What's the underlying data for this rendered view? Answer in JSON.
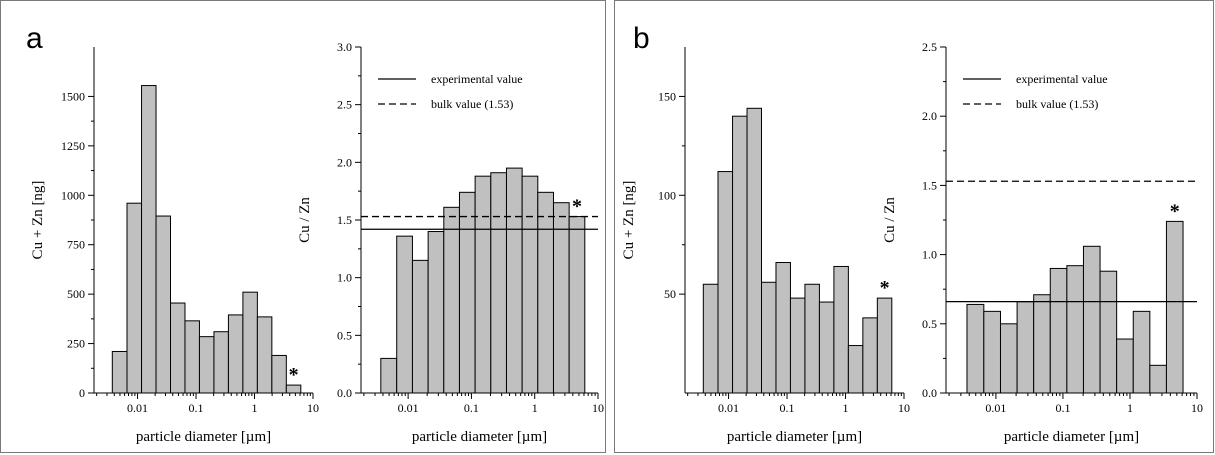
{
  "panels": {
    "a": {
      "label": "a"
    },
    "b": {
      "label": "b"
    }
  },
  "colors": {
    "bar_fill": "#c0c0c0",
    "bar_stroke": "#000000",
    "line": "#000000"
  },
  "chart_data": [
    {
      "id": "a-left",
      "type": "bar",
      "xscale": "log",
      "xlabel": "particle diameter [µm]",
      "ylabel": "Cu + Zn [ng]",
      "xticks": [
        0.01,
        0.1,
        1,
        10
      ],
      "xtick_labels": [
        "0.01",
        "0.1",
        "1",
        "10"
      ],
      "yticks": [
        0,
        250,
        500,
        750,
        1000,
        1250,
        1500
      ],
      "ytick_labels": [
        "0",
        "250",
        "500",
        "750",
        "1000",
        "1250",
        "1500"
      ],
      "ylim": [
        0,
        1750
      ],
      "xlim": [
        0.0018,
        10
      ],
      "bin_edges": [
        0.0037,
        0.0066,
        0.0117,
        0.0207,
        0.0366,
        0.0647,
        0.1144,
        0.2024,
        0.3579,
        0.6329,
        1.1192,
        1.9792,
        3.5,
        6.19
      ],
      "values": [
        210,
        960,
        1555,
        895,
        455,
        365,
        285,
        310,
        395,
        510,
        385,
        190,
        40
      ],
      "annotations": [
        {
          "text": "*",
          "bar_index": 12
        }
      ]
    },
    {
      "id": "a-right",
      "type": "bar",
      "xscale": "log",
      "xlabel": "particle diameter [µm]",
      "ylabel": "Cu / Zn",
      "xticks": [
        0.01,
        0.1,
        1,
        10
      ],
      "xtick_labels": [
        "0.01",
        "0.1",
        "1",
        "10"
      ],
      "yticks": [
        0,
        0.5,
        1.0,
        1.5,
        2.0,
        2.5,
        3.0
      ],
      "ytick_labels": [
        "0.0",
        "0.5",
        "1.0",
        "1.5",
        "2.0",
        "2.5",
        "3.0"
      ],
      "ylim": [
        0,
        3.0
      ],
      "xlim": [
        0.0018,
        10
      ],
      "bin_edges": [
        0.0037,
        0.0066,
        0.0117,
        0.0207,
        0.0366,
        0.0647,
        0.1144,
        0.2024,
        0.3579,
        0.6329,
        1.1192,
        1.9792,
        3.5,
        6.19
      ],
      "values": [
        0.3,
        1.36,
        1.15,
        1.4,
        1.61,
        1.74,
        1.88,
        1.91,
        1.95,
        1.88,
        1.74,
        1.65,
        1.53
      ],
      "reference_lines": [
        {
          "label": "experimental value",
          "value": 1.42,
          "style": "solid"
        },
        {
          "label": "bulk value (1.53)",
          "value": 1.53,
          "style": "dashed"
        }
      ],
      "legend": [
        "experimental value",
        "bulk value (1.53)"
      ],
      "legend_position": "top-right",
      "annotations": [
        {
          "text": "*",
          "bar_index": 12
        }
      ]
    },
    {
      "id": "b-left",
      "type": "bar",
      "xscale": "log",
      "xlabel": "particle diameter [µm]",
      "ylabel": "Cu + Zn [ng]",
      "xticks": [
        0.01,
        0.1,
        1,
        10
      ],
      "xtick_labels": [
        "0.01",
        "0.1",
        "1",
        "10"
      ],
      "yticks": [
        50,
        100,
        150
      ],
      "ytick_labels": [
        "50",
        "100",
        "150"
      ],
      "ylim": [
        0,
        175
      ],
      "xlim": [
        0.0018,
        10
      ],
      "bin_edges": [
        0.0037,
        0.0066,
        0.0117,
        0.0207,
        0.0366,
        0.0647,
        0.1144,
        0.2024,
        0.3579,
        0.6329,
        1.1192,
        1.9792,
        3.5,
        6.19
      ],
      "values": [
        55,
        112,
        140,
        144,
        56,
        66,
        48,
        55,
        46,
        64,
        24,
        38,
        48
      ],
      "annotations": [
        {
          "text": "*",
          "bar_index": 12
        }
      ]
    },
    {
      "id": "b-right",
      "type": "bar",
      "xscale": "log",
      "xlabel": "particle diameter [µm]",
      "ylabel": "Cu / Zn",
      "xticks": [
        0.01,
        0.1,
        1,
        10
      ],
      "xtick_labels": [
        "0.01",
        "0.1",
        "1",
        "10"
      ],
      "yticks": [
        0,
        0.5,
        1.0,
        1.5,
        2.0,
        2.5
      ],
      "ytick_labels": [
        "0.0",
        "0.5",
        "1.0",
        "1.5",
        "2.0",
        "2.5"
      ],
      "ylim": [
        0,
        2.5
      ],
      "xlim": [
        0.0018,
        10
      ],
      "bin_edges": [
        0.0037,
        0.0066,
        0.0117,
        0.0207,
        0.0366,
        0.0647,
        0.1144,
        0.2024,
        0.3579,
        0.6329,
        1.1192,
        1.9792,
        3.5,
        6.19
      ],
      "values": [
        0.64,
        0.59,
        0.5,
        0.66,
        0.71,
        0.9,
        0.92,
        1.06,
        0.88,
        0.39,
        0.59,
        0.2,
        1.24
      ],
      "reference_lines": [
        {
          "label": "experimental value",
          "value": 0.66,
          "style": "solid"
        },
        {
          "label": "bulk value (1.53)",
          "value": 1.53,
          "style": "dashed"
        }
      ],
      "legend": [
        "experimental value",
        "bulk value (1.53)"
      ],
      "legend_position": "top-right",
      "annotations": [
        {
          "text": "*",
          "bar_index": 12
        }
      ]
    }
  ]
}
